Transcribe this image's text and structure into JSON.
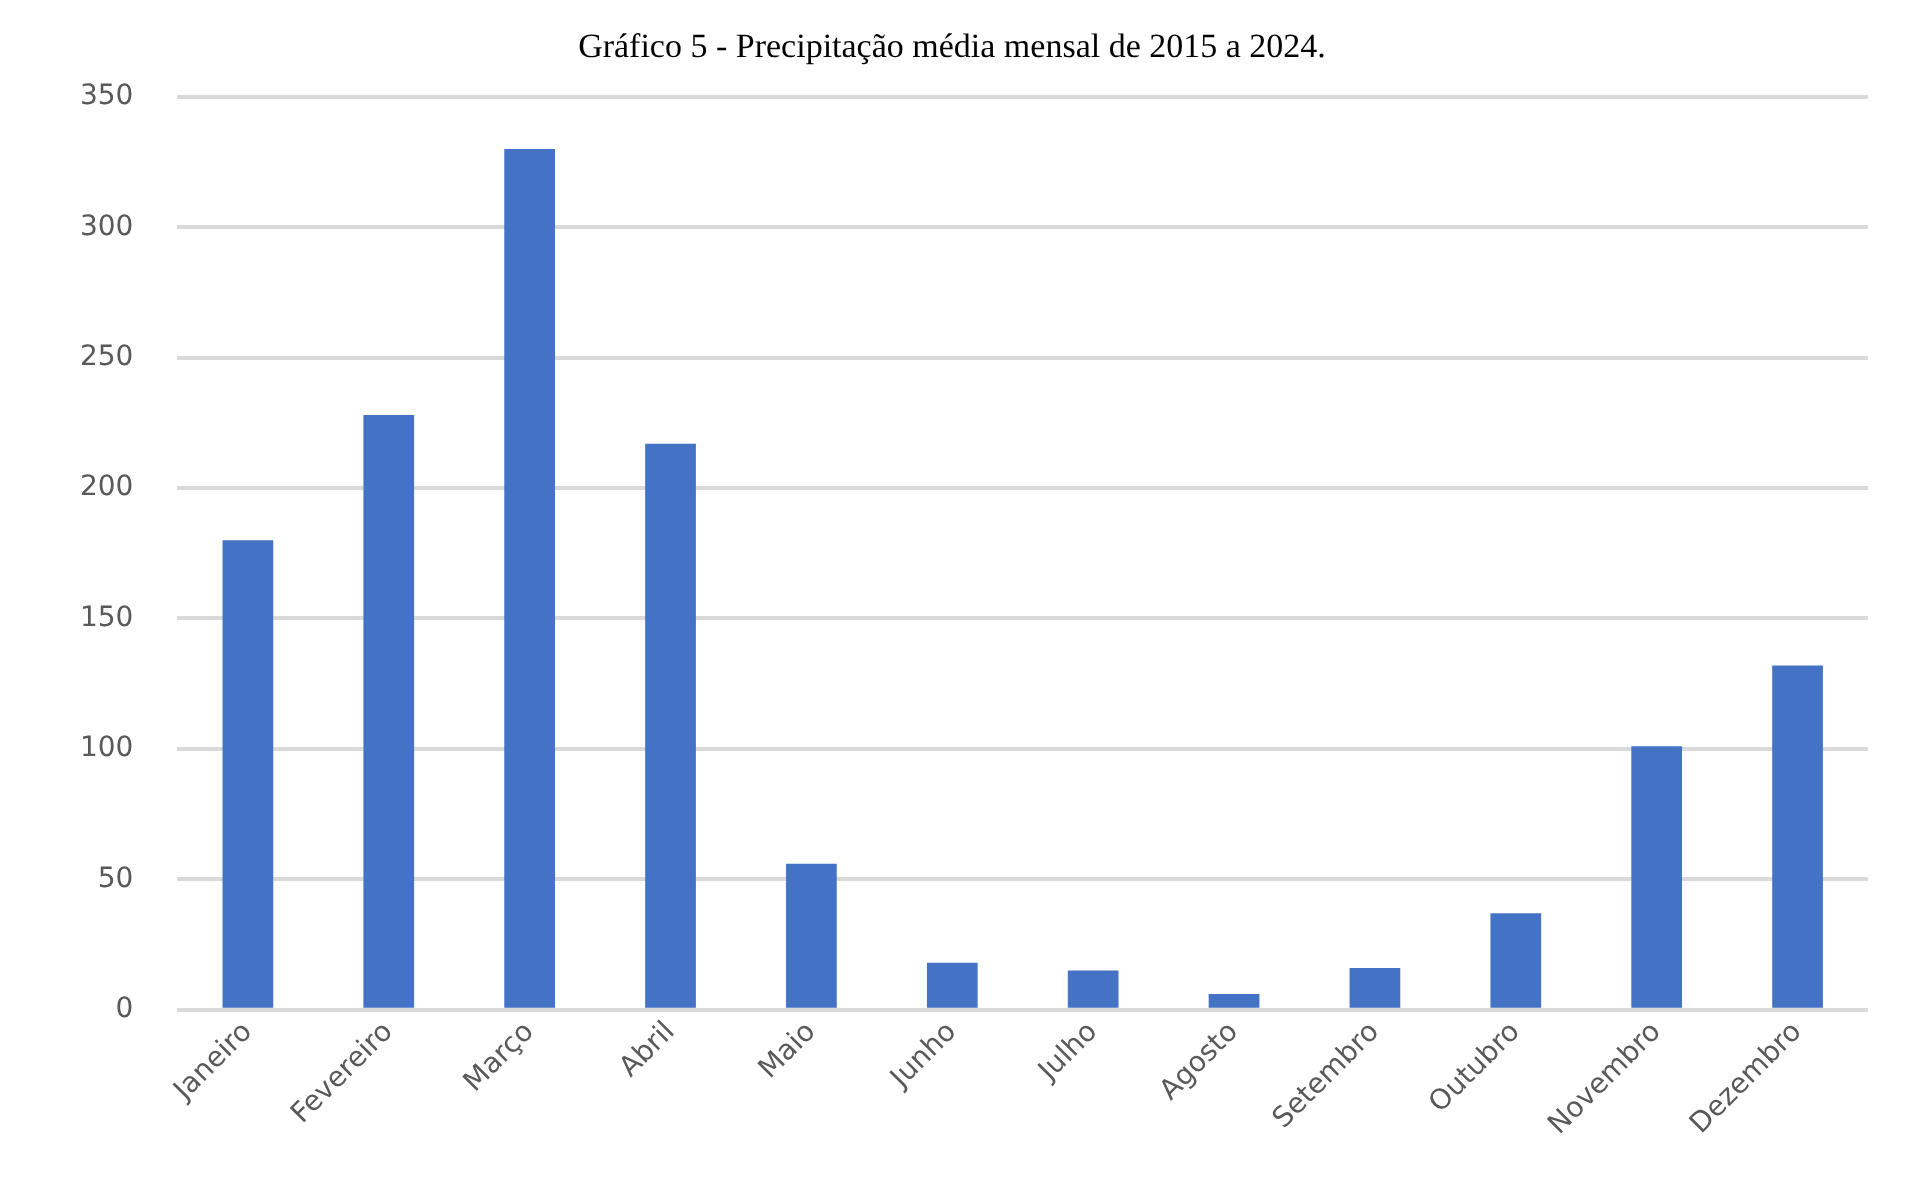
{
  "chart_data": {
    "type": "bar",
    "title": "Gráfico 5 - Precipitação média mensal de 2015 a 2024.",
    "categories": [
      "Janeiro",
      "Fevereiro",
      "Março",
      "Abril",
      "Maio",
      "Junho",
      "Julho",
      "Agosto",
      "Setembro",
      "Outubro",
      "Novembro",
      "Dezembro"
    ],
    "values": [
      180,
      228,
      330,
      217,
      56,
      18,
      15,
      6,
      16,
      37,
      101,
      132
    ],
    "color": "#4472c4",
    "ylim": [
      0,
      350
    ],
    "yticks": [
      0,
      50,
      100,
      150,
      200,
      250,
      300,
      350
    ],
    "grid": "y"
  }
}
